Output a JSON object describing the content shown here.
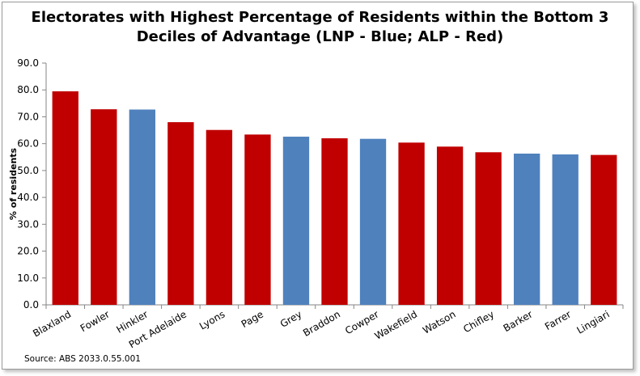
{
  "chart_data": {
    "type": "bar",
    "title_line1": "Electorates with Highest Percentage of Residents within the Bottom 3",
    "title_line2": "Deciles of Advantage (LNP - Blue; ALP - Red)",
    "ylabel": "% of residents",
    "source": "Source: ABS 2033.0.55.001",
    "ylim": [
      0,
      90
    ],
    "yticks": [
      "0.0",
      "10.0",
      "20.0",
      "30.0",
      "40.0",
      "50.0",
      "60.0",
      "70.0",
      "80.0",
      "90.0"
    ],
    "categories": [
      "Blaxland",
      "Fowler",
      "Hinkler",
      "Port Adelaide",
      "Lyons",
      "Page",
      "Grey",
      "Braddon",
      "Cowper",
      "Wakefield",
      "Watson",
      "Chifley",
      "Barker",
      "Farrer",
      "Lingiari"
    ],
    "values": [
      79.5,
      72.8,
      72.7,
      68.0,
      65.1,
      63.4,
      62.6,
      62.0,
      61.8,
      60.4,
      58.9,
      56.8,
      56.3,
      56.0,
      55.8
    ],
    "parties": [
      "ALP",
      "ALP",
      "LNP",
      "ALP",
      "ALP",
      "ALP",
      "LNP",
      "ALP",
      "LNP",
      "ALP",
      "ALP",
      "ALP",
      "LNP",
      "LNP",
      "ALP"
    ],
    "colors": {
      "ALP": "#c00000",
      "LNP": "#4f81bd"
    },
    "grid": false,
    "legend": "none"
  }
}
